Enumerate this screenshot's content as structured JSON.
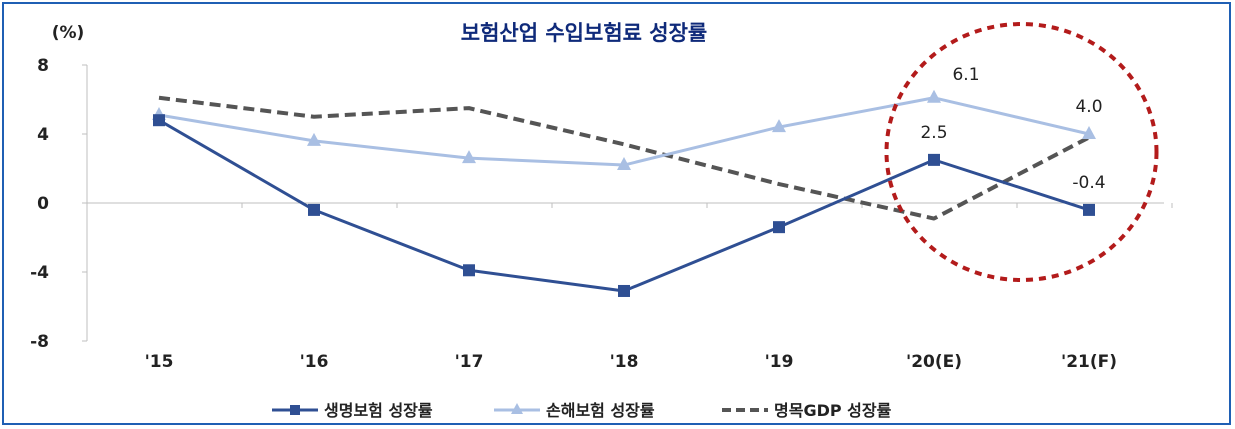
{
  "chart_data": {
    "type": "line",
    "title": "보험산업 수입보험료 성장률",
    "ylabel": "(%)",
    "categories": [
      "'15",
      "'16",
      "'17",
      "'18",
      "'19",
      "'20(E)",
      "'21(F)"
    ],
    "ylim": [
      -8,
      8
    ],
    "yticks": [
      8,
      4,
      0,
      -4,
      -8
    ],
    "series": [
      {
        "name": "생명보험 성장률",
        "color": "#2f4f93",
        "marker": "square",
        "dash": "solid",
        "values": [
          4.8,
          -0.4,
          -3.9,
          -5.1,
          -1.4,
          2.5,
          -0.4
        ]
      },
      {
        "name": "손해보험 성장률",
        "color": "#a9bfe3",
        "marker": "triangle",
        "dash": "solid",
        "values": [
          5.1,
          3.6,
          2.6,
          2.2,
          4.4,
          6.1,
          4.0
        ]
      },
      {
        "name": "명목GDP 성장률",
        "color": "#555555",
        "marker": "none",
        "dash": "dashed",
        "values": [
          6.1,
          5.0,
          5.5,
          3.4,
          1.1,
          -0.9,
          3.8
        ]
      }
    ],
    "data_labels": [
      {
        "text": "6.1",
        "series": 1,
        "index": 5
      },
      {
        "text": "4.0",
        "series": 1,
        "index": 6
      },
      {
        "text": "2.5",
        "series": 0,
        "index": 5
      },
      {
        "text": "-0.4",
        "series": 0,
        "index": 6
      }
    ],
    "annotation": {
      "shape": "dashed-circle",
      "color": "#b31b1b",
      "covers": [
        "'20(E)",
        "'21(F)"
      ]
    },
    "legend": "bottom",
    "grid": false
  }
}
